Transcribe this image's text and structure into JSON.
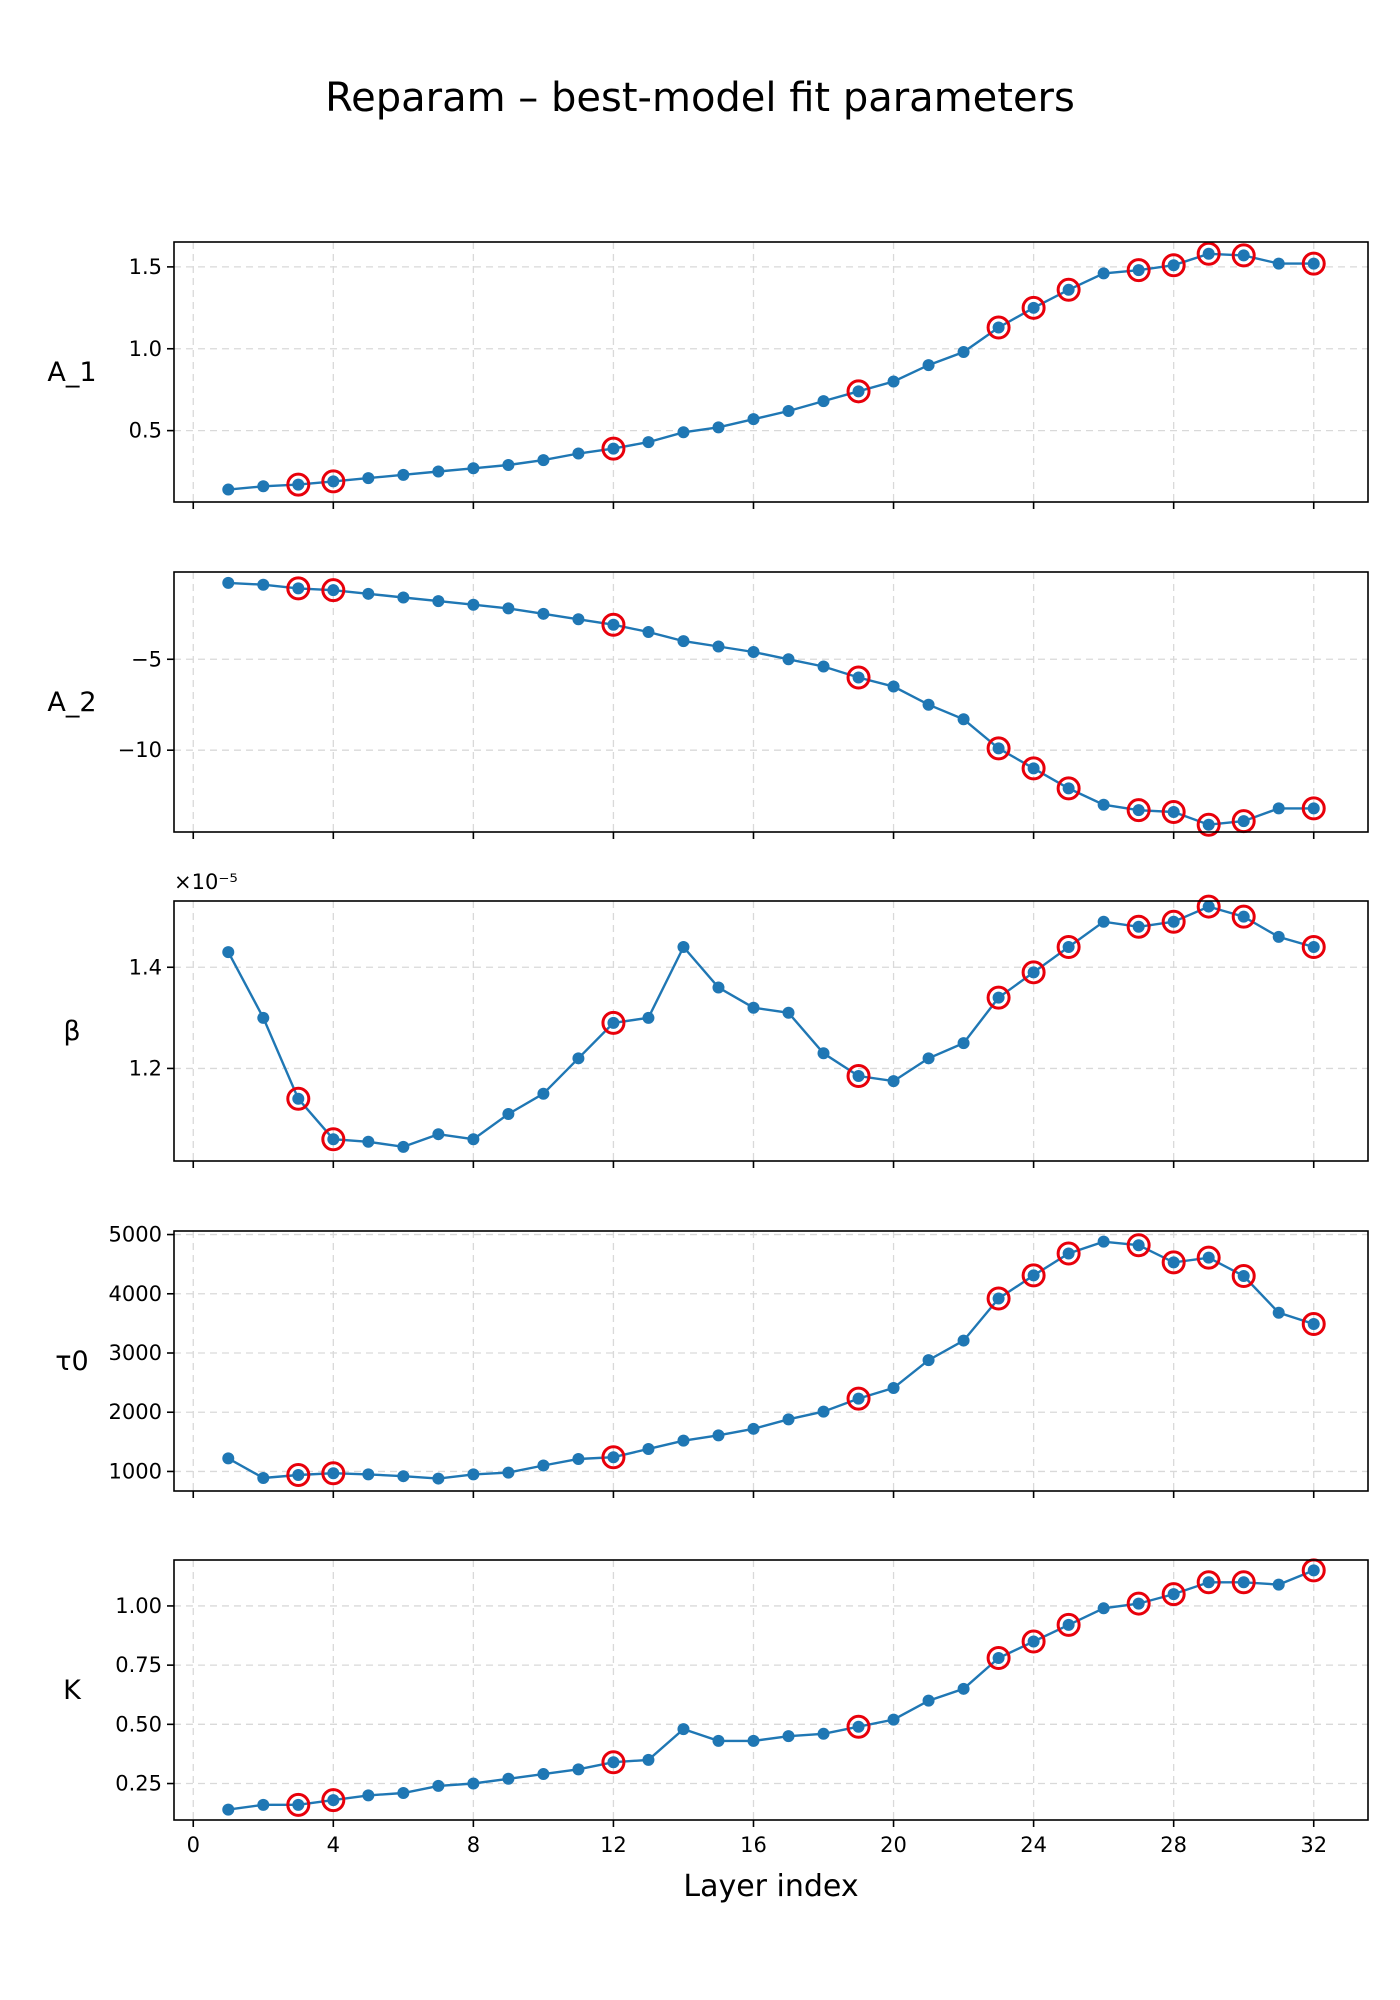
{
  "title": "Reparam – best-model fit parameters",
  "xlabel": "Layer index",
  "colors": {
    "line": "#1f77b4",
    "highlight": "#e8000b"
  },
  "chart_data": {
    "type": "line",
    "x": [
      1,
      2,
      3,
      4,
      5,
      6,
      7,
      8,
      9,
      10,
      11,
      12,
      13,
      14,
      15,
      16,
      17,
      18,
      19,
      20,
      21,
      22,
      23,
      24,
      25,
      26,
      27,
      28,
      29,
      30,
      31,
      32
    ],
    "xlim": [
      -0.55,
      33.55
    ],
    "xticks": [
      0,
      4,
      8,
      12,
      16,
      20,
      24,
      28,
      32
    ],
    "xlabel": "Layer index",
    "highlighted_x": [
      3,
      4,
      12,
      19,
      23,
      24,
      25,
      27,
      28,
      29,
      30,
      32
    ],
    "highlight_style": "red ring markers",
    "grid": true,
    "panels": [
      {
        "ylabel": "A_1",
        "ylim": [
          0.064,
          1.652
        ],
        "yticks": [
          0.5,
          1.0,
          1.5
        ],
        "ytick_labels": [
          "0.5",
          "1.0",
          "1.5"
        ],
        "values": [
          0.14,
          0.16,
          0.17,
          0.19,
          0.21,
          0.23,
          0.25,
          0.27,
          0.29,
          0.32,
          0.36,
          0.39,
          0.43,
          0.49,
          0.52,
          0.57,
          0.62,
          0.68,
          0.74,
          0.8,
          0.9,
          0.98,
          1.13,
          1.25,
          1.36,
          1.46,
          1.48,
          1.51,
          1.58,
          1.57,
          1.52,
          1.52
        ]
      },
      {
        "ylabel": "A_2",
        "ylim": [
          -14.5,
          -0.2
        ],
        "yticks": [
          -5,
          -10
        ],
        "ytick_labels": [
          "−5",
          "−10"
        ],
        "values": [
          -0.8,
          -0.9,
          -1.1,
          -1.2,
          -1.4,
          -1.6,
          -1.8,
          -2.0,
          -2.2,
          -2.5,
          -2.8,
          -3.1,
          -3.5,
          -4.0,
          -4.3,
          -4.6,
          -5.0,
          -5.4,
          -6.0,
          -6.5,
          -7.5,
          -8.3,
          -9.9,
          -11.0,
          -12.1,
          -13.0,
          -13.3,
          -13.4,
          -14.1,
          -13.9,
          -13.2,
          -13.2
        ]
      },
      {
        "ylabel": "β",
        "ylim": [
          1.017,
          1.531
        ],
        "yticks": [
          1.2,
          1.4
        ],
        "ytick_labels": [
          "1.2",
          "1.4"
        ],
        "offset_label": "×10⁻⁵",
        "values": [
          1.43,
          1.3,
          1.14,
          1.06,
          1.055,
          1.045,
          1.07,
          1.06,
          1.11,
          1.15,
          1.22,
          1.29,
          1.3,
          1.44,
          1.36,
          1.32,
          1.31,
          1.23,
          1.185,
          1.175,
          1.22,
          1.25,
          1.34,
          1.39,
          1.44,
          1.49,
          1.48,
          1.49,
          1.52,
          1.5,
          1.46,
          1.44
        ]
      },
      {
        "ylabel": "τ0",
        "ylim": [
          670,
          5060
        ],
        "yticks": [
          1000,
          2000,
          3000,
          4000,
          5000
        ],
        "ytick_labels": [
          "1000",
          "2000",
          "3000",
          "4000",
          "5000"
        ],
        "values": [
          1220,
          890,
          940,
          970,
          950,
          920,
          880,
          950,
          980,
          1100,
          1210,
          1240,
          1380,
          1520,
          1610,
          1720,
          1880,
          2010,
          2230,
          2410,
          2880,
          3210,
          3920,
          4310,
          4680,
          4880,
          4820,
          4530,
          4610,
          4300,
          3680,
          3490
        ]
      },
      {
        "ylabel": "K",
        "ylim": [
          0.096,
          1.194
        ],
        "yticks": [
          0.25,
          0.5,
          0.75,
          1.0
        ],
        "ytick_labels": [
          "0.25",
          "0.50",
          "0.75",
          "1.00"
        ],
        "values": [
          0.14,
          0.16,
          0.16,
          0.18,
          0.2,
          0.21,
          0.24,
          0.25,
          0.27,
          0.29,
          0.31,
          0.34,
          0.35,
          0.48,
          0.43,
          0.43,
          0.45,
          0.46,
          0.49,
          0.52,
          0.6,
          0.65,
          0.78,
          0.85,
          0.92,
          0.99,
          1.01,
          1.05,
          1.1,
          1.1,
          1.09,
          1.15
        ]
      }
    ]
  }
}
